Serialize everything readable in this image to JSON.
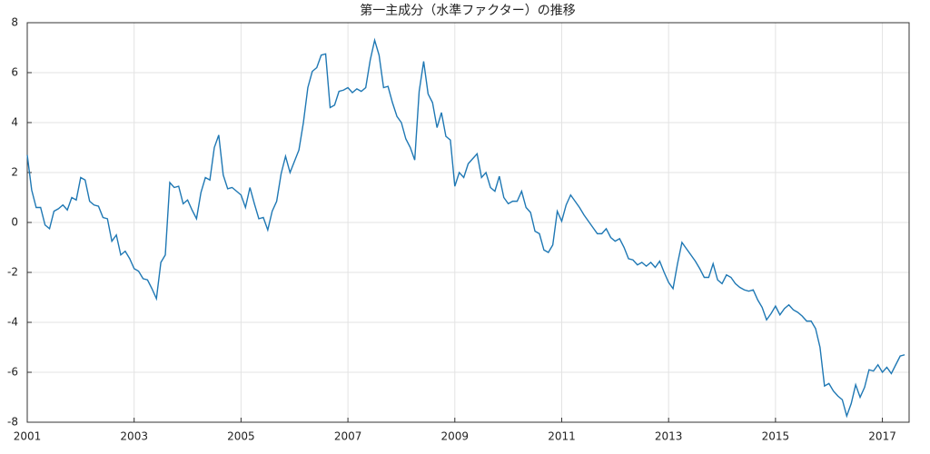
{
  "chart_data": {
    "type": "line",
    "title": "第一主成分（水準ファクター）の推移",
    "x": [
      2001,
      2001.083,
      2001.167,
      2001.25,
      2001.333,
      2001.417,
      2001.5,
      2001.583,
      2001.667,
      2001.75,
      2001.833,
      2001.917,
      2002,
      2002.083,
      2002.167,
      2002.25,
      2002.333,
      2002.417,
      2002.5,
      2002.583,
      2002.667,
      2002.75,
      2002.833,
      2002.917,
      2003,
      2003.083,
      2003.167,
      2003.25,
      2003.333,
      2003.417,
      2003.5,
      2003.583,
      2003.667,
      2003.75,
      2003.833,
      2003.917,
      2004,
      2004.083,
      2004.167,
      2004.25,
      2004.333,
      2004.417,
      2004.5,
      2004.583,
      2004.667,
      2004.75,
      2004.833,
      2004.917,
      2005,
      2005.083,
      2005.167,
      2005.25,
      2005.333,
      2005.417,
      2005.5,
      2005.583,
      2005.667,
      2005.75,
      2005.833,
      2005.917,
      2006,
      2006.083,
      2006.167,
      2006.25,
      2006.333,
      2006.417,
      2006.5,
      2006.583,
      2006.667,
      2006.75,
      2006.833,
      2006.917,
      2007,
      2007.083,
      2007.167,
      2007.25,
      2007.333,
      2007.417,
      2007.5,
      2007.583,
      2007.667,
      2007.75,
      2007.833,
      2007.917,
      2008,
      2008.083,
      2008.167,
      2008.25,
      2008.333,
      2008.417,
      2008.5,
      2008.583,
      2008.667,
      2008.75,
      2008.833,
      2008.917,
      2009,
      2009.083,
      2009.167,
      2009.25,
      2009.333,
      2009.417,
      2009.5,
      2009.583,
      2009.667,
      2009.75,
      2009.833,
      2009.917,
      2010,
      2010.083,
      2010.167,
      2010.25,
      2010.333,
      2010.417,
      2010.5,
      2010.583,
      2010.667,
      2010.75,
      2010.833,
      2010.917,
      2011,
      2011.083,
      2011.167,
      2011.25,
      2011.333,
      2011.417,
      2011.5,
      2011.583,
      2011.667,
      2011.75,
      2011.833,
      2011.917,
      2012,
      2012.083,
      2012.167,
      2012.25,
      2012.333,
      2012.417,
      2012.5,
      2012.583,
      2012.667,
      2012.75,
      2012.833,
      2012.917,
      2013,
      2013.083,
      2013.167,
      2013.25,
      2013.333,
      2013.417,
      2013.5,
      2013.583,
      2013.667,
      2013.75,
      2013.833,
      2013.917,
      2014,
      2014.083,
      2014.167,
      2014.25,
      2014.333,
      2014.417,
      2014.5,
      2014.583,
      2014.667,
      2014.75,
      2014.833,
      2014.917,
      2015,
      2015.083,
      2015.167,
      2015.25,
      2015.333,
      2015.417,
      2015.5,
      2015.583,
      2015.667,
      2015.75,
      2015.833,
      2015.917,
      2016,
      2016.083,
      2016.167,
      2016.25,
      2016.333,
      2016.417,
      2016.5,
      2016.583,
      2016.667,
      2016.75,
      2016.833,
      2016.917,
      2017,
      2017.083,
      2017.167,
      2017.25,
      2017.333,
      2017.417
    ],
    "series": [
      {
        "color": "#1f78b4",
        "values": [
          2.7,
          1.3,
          0.6,
          0.6,
          -0.1,
          -0.25,
          0.45,
          0.55,
          0.7,
          0.5,
          1.0,
          0.9,
          1.8,
          1.7,
          0.85,
          0.7,
          0.65,
          0.2,
          0.15,
          -0.75,
          -0.5,
          -1.3,
          -1.15,
          -1.45,
          -1.85,
          -1.95,
          -2.25,
          -2.3,
          -2.65,
          -3.05,
          -1.6,
          -1.3,
          1.6,
          1.4,
          1.45,
          0.75,
          0.9,
          0.5,
          0.15,
          1.2,
          1.8,
          1.7,
          3.0,
          3.5,
          1.9,
          1.35,
          1.4,
          1.25,
          1.1,
          0.6,
          1.4,
          0.75,
          0.15,
          0.2,
          -0.3,
          0.45,
          0.85,
          1.95,
          2.65,
          2.0,
          2.45,
          2.9,
          4.0,
          5.4,
          6.05,
          6.2,
          6.7,
          6.75,
          4.6,
          4.7,
          5.25,
          5.3,
          5.4,
          5.2,
          5.35,
          5.25,
          5.4,
          6.5,
          7.3,
          6.7,
          5.4,
          5.45,
          4.8,
          4.25,
          4.0,
          3.35,
          3.0,
          2.5,
          5.25,
          6.45,
          5.15,
          4.8,
          3.8,
          4.4,
          3.45,
          3.3,
          1.45,
          2.0,
          1.8,
          2.35,
          2.55,
          2.75,
          1.8,
          2.0,
          1.4,
          1.25,
          1.85,
          1.0,
          0.75,
          0.85,
          0.85,
          1.25,
          0.6,
          0.4,
          -0.35,
          -0.45,
          -1.1,
          -1.2,
          -0.9,
          0.45,
          0.05,
          0.7,
          1.1,
          0.85,
          0.6,
          0.3,
          0.05,
          -0.2,
          -0.45,
          -0.45,
          -0.25,
          -0.6,
          -0.75,
          -0.65,
          -1.0,
          -1.45,
          -1.5,
          -1.7,
          -1.6,
          -1.75,
          -1.6,
          -1.8,
          -1.55,
          -2.0,
          -2.4,
          -2.65,
          -1.65,
          -0.8,
          -1.05,
          -1.3,
          -1.55,
          -1.85,
          -2.2,
          -2.2,
          -1.65,
          -2.3,
          -2.45,
          -2.1,
          -2.2,
          -2.45,
          -2.6,
          -2.7,
          -2.75,
          -2.7,
          -3.1,
          -3.4,
          -3.9,
          -3.65,
          -3.35,
          -3.7,
          -3.45,
          -3.3,
          -3.5,
          -3.6,
          -3.75,
          -3.95,
          -3.95,
          -4.25,
          -5.0,
          -6.55,
          -6.45,
          -6.75,
          -6.95,
          -7.1,
          -7.75,
          -7.25,
          -6.5,
          -7.0,
          -6.6,
          -5.9,
          -5.95,
          -5.7,
          -6.0,
          -5.8,
          -6.05,
          -5.7,
          -5.35,
          -5.3
        ]
      }
    ],
    "xlim": [
      2001,
      2017.5
    ],
    "xticks": [
      2001,
      2003,
      2005,
      2007,
      2009,
      2011,
      2013,
      2015,
      2017
    ],
    "ylim": [
      -8,
      8
    ],
    "yticks": [
      -8,
      -6,
      -4,
      -2,
      0,
      2,
      4,
      6,
      8
    ],
    "grid": true
  }
}
